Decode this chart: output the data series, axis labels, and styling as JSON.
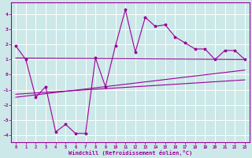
{
  "xlabel": "Windchill (Refroidissement éolien,°C)",
  "bg_color": "#cce8e8",
  "grid_color": "#ffffff",
  "line_color": "#990099",
  "xlim": [
    -0.5,
    23.5
  ],
  "ylim": [
    -4.5,
    4.8
  ],
  "xticks": [
    0,
    1,
    2,
    3,
    4,
    5,
    6,
    7,
    8,
    9,
    10,
    11,
    12,
    13,
    14,
    15,
    16,
    17,
    18,
    19,
    20,
    21,
    22,
    23
  ],
  "yticks": [
    -4,
    -3,
    -2,
    -1,
    0,
    1,
    2,
    3,
    4
  ],
  "main_x": [
    0,
    1,
    2,
    3,
    4,
    5,
    6,
    7,
    8,
    9,
    10,
    11,
    12,
    13,
    14,
    15,
    16,
    17,
    18,
    19,
    20,
    21,
    22,
    23
  ],
  "main_y": [
    1.9,
    1.0,
    -1.5,
    -0.8,
    -3.8,
    -3.3,
    -3.9,
    -3.9,
    1.1,
    -0.8,
    1.9,
    4.3,
    1.5,
    3.8,
    3.2,
    3.3,
    2.5,
    2.1,
    1.7,
    1.7,
    1.0,
    1.6,
    1.6,
    1.0
  ],
  "line2_x": [
    0,
    23
  ],
  "line2_y": [
    -1.3,
    -0.35
  ],
  "line3_x": [
    0,
    23
  ],
  "line3_y": [
    -1.5,
    0.3
  ],
  "line4_x": [
    0,
    23
  ],
  "line4_y": [
    1.1,
    1.0
  ]
}
